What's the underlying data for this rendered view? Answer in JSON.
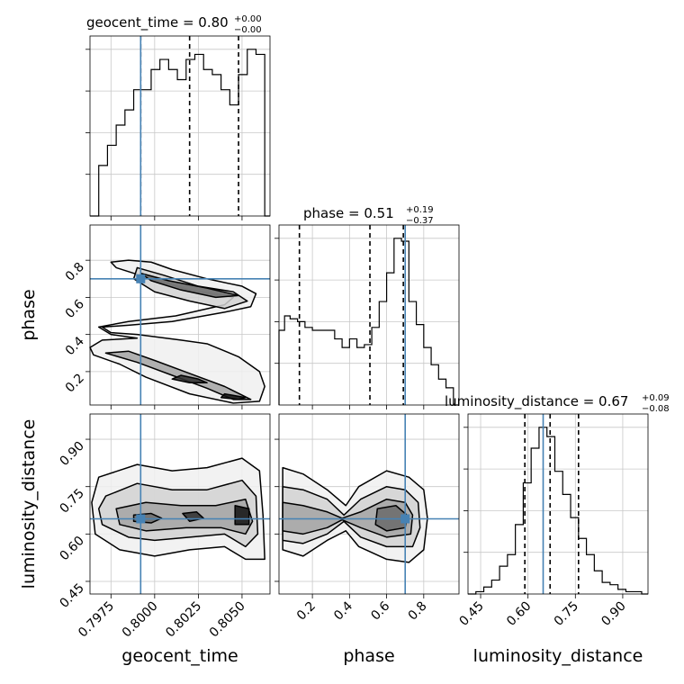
{
  "chart_data": {
    "type": "corner",
    "parameters": [
      "geocent_time",
      "phase",
      "luminosity_distance"
    ],
    "axis_labels": {
      "geocent_time": "geocent_time",
      "phase": "phase",
      "luminosity_distance": "luminosity_distance"
    },
    "ranges": {
      "geocent_time": [
        0.7963,
        0.8066
      ],
      "phase": [
        0.02,
        0.99
      ],
      "luminosity_distance": [
        0.41,
        0.98
      ]
    },
    "ticks": {
      "geocent_time": [
        0.7975,
        0.8,
        0.8025,
        0.805
      ],
      "phase": [
        0.2,
        0.4,
        0.6,
        0.8
      ],
      "luminosity_distance": [
        0.45,
        0.6,
        0.75,
        0.9
      ]
    },
    "tick_labels": {
      "geocent_time": [
        "0.7975",
        "0.8000",
        "0.8025",
        "0.8050"
      ],
      "phase": [
        "0.2",
        "0.4",
        "0.6",
        "0.8"
      ],
      "luminosity_distance": [
        "0.45",
        "0.60",
        "0.75",
        "0.90"
      ]
    },
    "titles": {
      "geocent_time": {
        "main": "geocent_time = 0.80",
        "plus": "+0.00",
        "minus": "−0.00"
      },
      "phase": {
        "main": "phase = 0.51",
        "plus": "+0.19",
        "minus": "−0.37"
      },
      "luminosity_distance": {
        "main": "luminosity_distance = 0.67",
        "plus": "+0.09",
        "minus": "−0.08"
      }
    },
    "truths": {
      "geocent_time": 0.7992,
      "phase": 0.7,
      "luminosity_distance": 0.648
    },
    "quantiles": {
      "geocent_time": [
        0.7992,
        0.802,
        0.8048
      ],
      "phase": [
        0.13,
        0.51,
        0.69
      ],
      "luminosity_distance": [
        0.59,
        0.67,
        0.76
      ]
    },
    "truth_color": "#4682b4",
    "contour_color": "#000000",
    "grid": true,
    "histograms": {
      "geocent_time": {
        "edges": [
          0.7963,
          0.7968,
          0.7973,
          0.7978,
          0.7983,
          0.7988,
          0.7993,
          0.7998,
          0.8003,
          0.8008,
          0.8013,
          0.8018,
          0.8023,
          0.8028,
          0.8033,
          0.8038,
          0.8043,
          0.8048,
          0.8053,
          0.8058,
          0.8063,
          0.8066
        ],
        "counts": [
          0,
          10,
          14,
          18,
          21,
          25,
          25,
          29,
          31,
          29,
          27,
          31,
          32,
          29,
          28,
          25,
          22,
          28,
          33,
          32,
          0
        ]
      },
      "phase": {
        "edges": [
          0.02,
          0.05,
          0.08,
          0.12,
          0.16,
          0.2,
          0.24,
          0.28,
          0.32,
          0.36,
          0.4,
          0.44,
          0.48,
          0.52,
          0.56,
          0.6,
          0.64,
          0.68,
          0.72,
          0.76,
          0.8,
          0.84,
          0.88,
          0.92,
          0.96,
          0.99
        ],
        "counts": [
          26,
          31,
          30,
          29,
          27,
          26,
          26,
          26,
          23,
          20,
          23,
          20,
          21,
          27,
          36,
          46,
          58,
          57,
          36,
          28,
          20,
          14,
          9,
          6,
          0
        ]
      },
      "luminosity_distance": {
        "edges": [
          0.41,
          0.435,
          0.46,
          0.485,
          0.51,
          0.535,
          0.56,
          0.585,
          0.61,
          0.635,
          0.66,
          0.685,
          0.71,
          0.735,
          0.76,
          0.785,
          0.81,
          0.835,
          0.86,
          0.885,
          0.91,
          0.935,
          0.96,
          0.98
        ],
        "counts": [
          0,
          1,
          3,
          6,
          12,
          17,
          30,
          48,
          63,
          72,
          68,
          53,
          43,
          33,
          24,
          17,
          10,
          5,
          4,
          2,
          1,
          1,
          0
        ]
      }
    },
    "pairs": [
      {
        "x": "geocent_time",
        "y": "phase",
        "contours": [
          [
            [
              0.7985,
              0.8
            ],
            [
              0.7998,
              0.79
            ],
            [
              0.801,
              0.75
            ],
            [
              0.803,
              0.7
            ],
            [
              0.805,
              0.66
            ],
            [
              0.8058,
              0.62
            ],
            [
              0.8055,
              0.55
            ],
            [
              0.804,
              0.52
            ],
            [
              0.801,
              0.47
            ],
            [
              0.7985,
              0.45
            ],
            [
              0.797,
              0.44
            ],
            [
              0.7975,
              0.41
            ],
            [
              0.799,
              0.4
            ],
            [
              0.8015,
              0.37
            ],
            [
              0.803,
              0.35
            ],
            [
              0.8048,
              0.28
            ],
            [
              0.806,
              0.2
            ],
            [
              0.8063,
              0.12
            ],
            [
              0.806,
              0.04
            ],
            [
              0.8045,
              0.03
            ],
            [
              0.802,
              0.08
            ],
            [
              0.7995,
              0.17
            ],
            [
              0.798,
              0.24
            ],
            [
              0.7965,
              0.29
            ],
            [
              0.7963,
              0.33
            ],
            [
              0.797,
              0.37
            ],
            [
              0.799,
              0.38
            ],
            [
              0.7975,
              0.4
            ],
            [
              0.7968,
              0.44
            ],
            [
              0.7985,
              0.47
            ],
            [
              0.8012,
              0.5
            ],
            [
              0.804,
              0.56
            ],
            [
              0.8045,
              0.6
            ],
            [
              0.802,
              0.64
            ],
            [
              0.7998,
              0.7
            ],
            [
              0.7978,
              0.76
            ],
            [
              0.7975,
              0.79
            ]
          ],
          [
            [
              0.799,
              0.76
            ],
            [
              0.8005,
              0.72
            ],
            [
              0.8025,
              0.66
            ],
            [
              0.8045,
              0.63
            ],
            [
              0.8053,
              0.58
            ],
            [
              0.804,
              0.54
            ],
            [
              0.802,
              0.58
            ],
            [
              0.8,
              0.63
            ],
            [
              0.7988,
              0.7
            ]
          ],
          [
            [
              0.7985,
              0.31
            ],
            [
              0.8,
              0.26
            ],
            [
              0.802,
              0.19
            ],
            [
              0.804,
              0.12
            ],
            [
              0.8055,
              0.05
            ],
            [
              0.8045,
              0.05
            ],
            [
              0.803,
              0.11
            ],
            [
              0.801,
              0.18
            ],
            [
              0.799,
              0.25
            ],
            [
              0.7972,
              0.3
            ]
          ],
          [
            [
              0.7992,
              0.73
            ],
            [
              0.8008,
              0.69
            ],
            [
              0.803,
              0.65
            ],
            [
              0.8048,
              0.61
            ],
            [
              0.8035,
              0.6
            ],
            [
              0.8015,
              0.64
            ],
            [
              0.7998,
              0.69
            ]
          ],
          [
            [
              0.8015,
              0.18
            ],
            [
              0.8025,
              0.16
            ],
            [
              0.803,
              0.14
            ],
            [
              0.802,
              0.14
            ],
            [
              0.801,
              0.16
            ]
          ],
          [
            [
              0.804,
              0.08
            ],
            [
              0.8052,
              0.06
            ],
            [
              0.8048,
              0.05
            ],
            [
              0.8038,
              0.06
            ]
          ]
        ]
      },
      {
        "x": "geocent_time",
        "y": "luminosity_distance",
        "contours": [
          [
            [
              0.7968,
              0.78
            ],
            [
              0.799,
              0.82
            ],
            [
              0.801,
              0.8
            ],
            [
              0.803,
              0.81
            ],
            [
              0.805,
              0.84
            ],
            [
              0.806,
              0.8
            ],
            [
              0.8062,
              0.66
            ],
            [
              0.8063,
              0.52
            ],
            [
              0.8052,
              0.52
            ],
            [
              0.804,
              0.56
            ],
            [
              0.802,
              0.55
            ],
            [
              0.8,
              0.53
            ],
            [
              0.798,
              0.55
            ],
            [
              0.7966,
              0.6
            ],
            [
              0.7964,
              0.7
            ]
          ],
          [
            [
              0.7972,
              0.72
            ],
            [
              0.799,
              0.76
            ],
            [
              0.801,
              0.74
            ],
            [
              0.803,
              0.74
            ],
            [
              0.805,
              0.77
            ],
            [
              0.8058,
              0.72
            ],
            [
              0.8059,
              0.6
            ],
            [
              0.8052,
              0.56
            ],
            [
              0.804,
              0.6
            ],
            [
              0.802,
              0.59
            ],
            [
              0.8,
              0.58
            ],
            [
              0.7985,
              0.59
            ],
            [
              0.797,
              0.63
            ],
            [
              0.7968,
              0.68
            ]
          ],
          [
            [
              0.7978,
              0.68
            ],
            [
              0.7995,
              0.7
            ],
            [
              0.8015,
              0.69
            ],
            [
              0.8035,
              0.69
            ],
            [
              0.8052,
              0.71
            ],
            [
              0.8056,
              0.64
            ],
            [
              0.8052,
              0.6
            ],
            [
              0.8038,
              0.62
            ],
            [
              0.8018,
              0.62
            ],
            [
              0.7995,
              0.61
            ],
            [
              0.798,
              0.63
            ]
          ],
          [
            [
              0.7988,
              0.66
            ],
            [
              0.7998,
              0.665
            ],
            [
              0.8004,
              0.65
            ],
            [
              0.7998,
              0.635
            ],
            [
              0.7988,
              0.64
            ]
          ],
          [
            [
              0.8016,
              0.665
            ],
            [
              0.8024,
              0.67
            ],
            [
              0.8028,
              0.65
            ],
            [
              0.802,
              0.64
            ]
          ],
          [
            [
              0.8046,
              0.69
            ],
            [
              0.8054,
              0.68
            ],
            [
              0.8054,
              0.63
            ],
            [
              0.8046,
              0.63
            ]
          ]
        ]
      },
      {
        "x": "phase",
        "y": "luminosity_distance",
        "contours": [
          [
            [
              0.04,
              0.81
            ],
            [
              0.15,
              0.79
            ],
            [
              0.28,
              0.74
            ],
            [
              0.38,
              0.69
            ],
            [
              0.45,
              0.75
            ],
            [
              0.6,
              0.8
            ],
            [
              0.72,
              0.78
            ],
            [
              0.8,
              0.74
            ],
            [
              0.82,
              0.65
            ],
            [
              0.8,
              0.55
            ],
            [
              0.72,
              0.51
            ],
            [
              0.6,
              0.52
            ],
            [
              0.45,
              0.56
            ],
            [
              0.38,
              0.61
            ],
            [
              0.28,
              0.58
            ],
            [
              0.15,
              0.53
            ],
            [
              0.04,
              0.55
            ]
          ],
          [
            [
              0.04,
              0.75
            ],
            [
              0.15,
              0.74
            ],
            [
              0.28,
              0.71
            ],
            [
              0.37,
              0.66
            ],
            [
              0.46,
              0.71
            ],
            [
              0.6,
              0.75
            ],
            [
              0.7,
              0.74
            ],
            [
              0.77,
              0.7
            ],
            [
              0.78,
              0.62
            ],
            [
              0.74,
              0.56
            ],
            [
              0.6,
              0.56
            ],
            [
              0.46,
              0.59
            ],
            [
              0.37,
              0.64
            ],
            [
              0.28,
              0.6
            ],
            [
              0.15,
              0.57
            ],
            [
              0.04,
              0.58
            ]
          ],
          [
            [
              0.04,
              0.7
            ],
            [
              0.15,
              0.69
            ],
            [
              0.28,
              0.67
            ],
            [
              0.36,
              0.65
            ],
            [
              0.46,
              0.67
            ],
            [
              0.6,
              0.71
            ],
            [
              0.7,
              0.7
            ],
            [
              0.74,
              0.66
            ],
            [
              0.73,
              0.6
            ],
            [
              0.6,
              0.59
            ],
            [
              0.46,
              0.62
            ],
            [
              0.36,
              0.645
            ],
            [
              0.28,
              0.62
            ],
            [
              0.15,
              0.6
            ],
            [
              0.04,
              0.61
            ]
          ],
          [
            [
              0.55,
              0.68
            ],
            [
              0.65,
              0.69
            ],
            [
              0.71,
              0.66
            ],
            [
              0.7,
              0.62
            ],
            [
              0.6,
              0.61
            ],
            [
              0.54,
              0.63
            ]
          ]
        ]
      }
    ]
  }
}
